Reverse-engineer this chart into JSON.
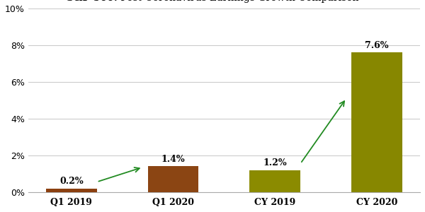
{
  "categories": [
    "Q1 2019",
    "Q1 2020",
    "CY 2019",
    "CY 2020"
  ],
  "values": [
    0.2,
    1.4,
    1.2,
    7.6
  ],
  "value_labels": [
    "0.2%",
    "1.4%",
    "1.2%",
    "7.6%"
  ],
  "bar_color_q1_2019": "#8B4010",
  "bar_color_q1_2020": "#8B4513",
  "bar_color_cy_2019": "#8B8B00",
  "bar_color_cy_2020": "#878700",
  "ylim": [
    0,
    10
  ],
  "yticks": [
    0,
    2,
    4,
    6,
    8,
    10
  ],
  "ytick_labels": [
    "0%",
    "2%",
    "4%",
    "6%",
    "8%",
    "10%"
  ],
  "background_color": "#ffffff",
  "grid_color": "#cccccc",
  "arrow_color": "#228B22",
  "bar_width": 0.5,
  "title_fontsize": 10,
  "tick_fontsize": 9,
  "value_fontsize": 9
}
